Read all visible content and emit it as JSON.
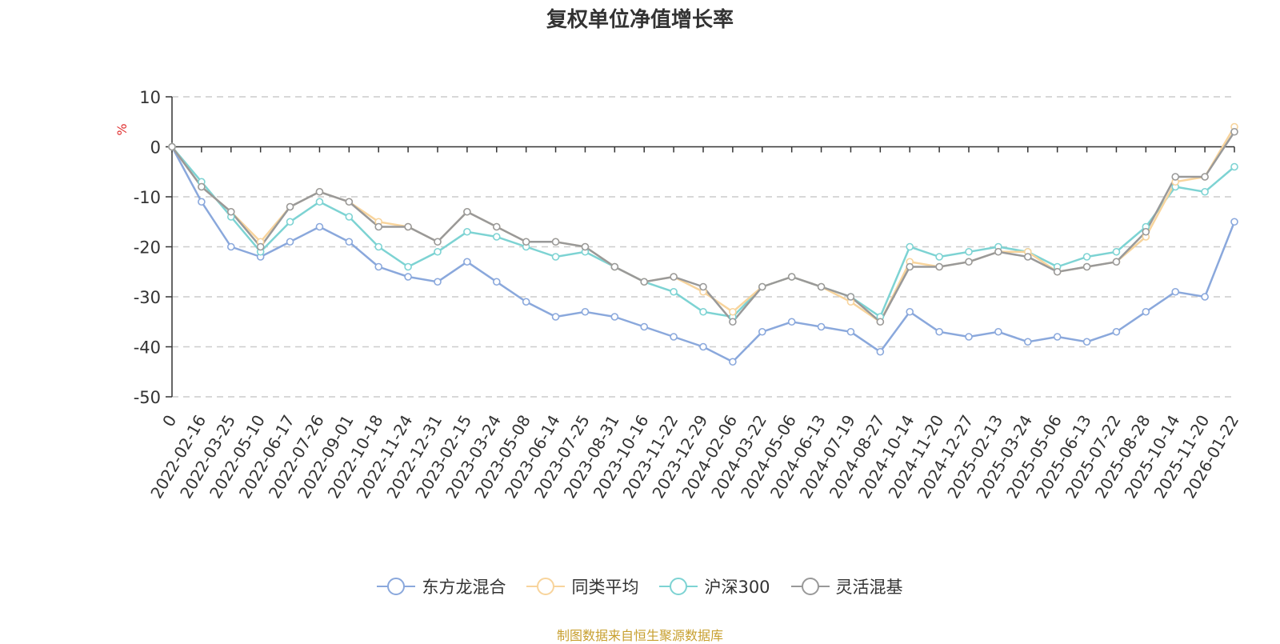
{
  "chart_data": {
    "type": "line",
    "title": "复权单位净值增长率",
    "ylabel": "%",
    "ylim": [
      -50,
      10
    ],
    "yticks": [
      10,
      0,
      -10,
      -20,
      -30,
      -40,
      -50
    ],
    "grid": true,
    "legend_position": "bottom-center",
    "x_categories": [
      "0",
      "2022-02-16",
      "2022-03-25",
      "2022-05-10",
      "2022-06-17",
      "2022-07-26",
      "2022-09-01",
      "2022-10-18",
      "2022-11-24",
      "2022-12-31",
      "2023-02-15",
      "2023-03-24",
      "2023-05-08",
      "2023-06-14",
      "2023-07-25",
      "2023-08-31",
      "2023-10-16",
      "2023-11-22",
      "2023-12-29",
      "2024-02-06",
      "2024-03-22",
      "2024-05-06",
      "2024-06-13",
      "2024-07-19",
      "2024-08-27",
      "2024-10-14",
      "2024-11-20",
      "2024-12-27",
      "2025-02-13",
      "2025-03-24",
      "2025-05-06",
      "2025-06-13",
      "2025-07-22",
      "2025-08-28",
      "2025-10-14",
      "2025-11-20",
      "2026-01-22"
    ],
    "series": [
      {
        "name": "东方龙混合",
        "color": "#8aa8dc",
        "values": [
          0,
          -11,
          -20,
          -22,
          -19,
          -16,
          -19,
          -24,
          -26,
          -27,
          -23,
          -27,
          -31,
          -34,
          -33,
          -34,
          -36,
          -38,
          -40,
          -43,
          -37,
          -35,
          -36,
          -37,
          -41,
          -33,
          -37,
          -38,
          -37,
          -39,
          -38,
          -39,
          -37,
          -33,
          -29,
          -30,
          -15
        ]
      },
      {
        "name": "同类平均",
        "color": "#f8d49c",
        "values": [
          0,
          -8,
          -13,
          -19,
          -12,
          -9,
          -11,
          -15,
          -16,
          -19,
          -13,
          -16,
          -19,
          -19,
          -20,
          -24,
          -27,
          -26,
          -29,
          -33,
          -28,
          -26,
          -28,
          -31,
          -35,
          -23,
          -24,
          -23,
          -21,
          -21,
          -25,
          -24,
          -23,
          -18,
          -7,
          -6,
          4
        ]
      },
      {
        "name": "沪深300",
        "color": "#7dd3d3",
        "values": [
          0,
          -7,
          -14,
          -21,
          -15,
          -11,
          -14,
          -20,
          -24,
          -21,
          -17,
          -18,
          -20,
          -22,
          -21,
          -24,
          -27,
          -29,
          -33,
          -34,
          -28,
          -26,
          -28,
          -30,
          -34,
          -20,
          -22,
          -21,
          -20,
          -21,
          -24,
          -22,
          -21,
          -16,
          -8,
          -9,
          -4
        ]
      },
      {
        "name": "灵活混基",
        "color": "#999999",
        "values": [
          0,
          -8,
          -13,
          -20,
          -12,
          -9,
          -11,
          -16,
          -16,
          -19,
          -13,
          -16,
          -19,
          -19,
          -20,
          -24,
          -27,
          -26,
          -28,
          -35,
          -28,
          -26,
          -28,
          -30,
          -35,
          -24,
          -24,
          -23,
          -21,
          -22,
          -25,
          -24,
          -23,
          -17,
          -6,
          -6,
          3
        ]
      }
    ]
  },
  "source_note": "制图数据来自恒生聚源数据库"
}
